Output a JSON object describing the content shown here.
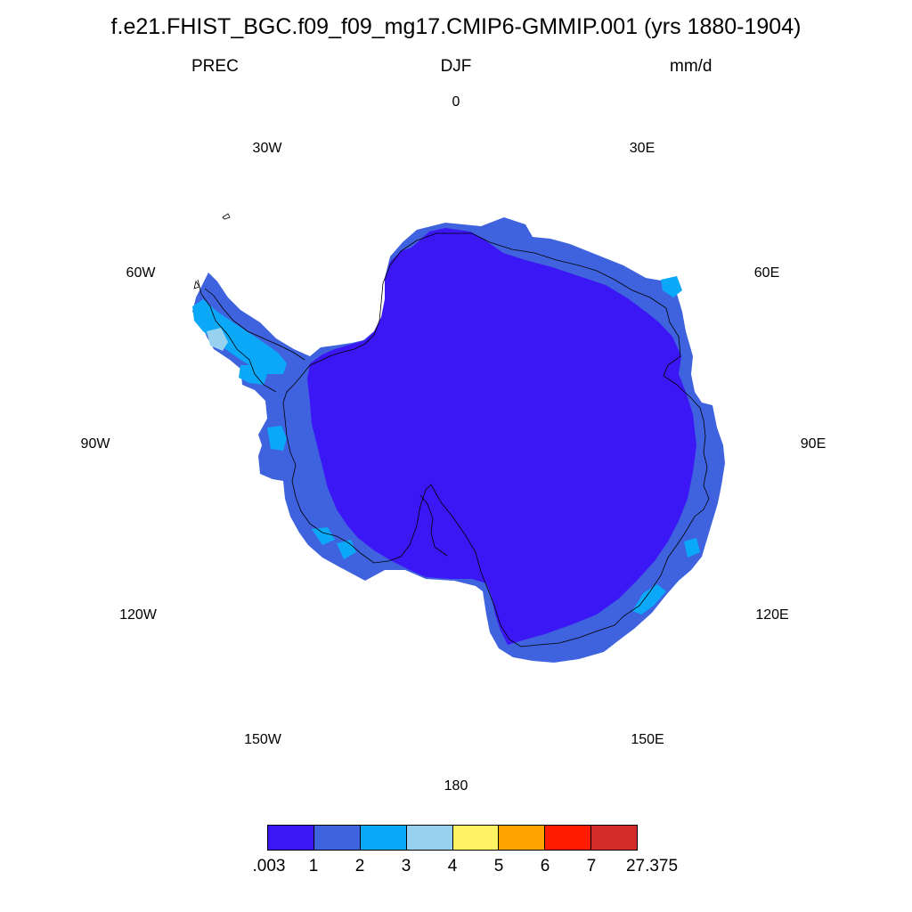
{
  "title": "f.e21.FHIST_BGC.f09_f09_mg17.CMIP6-GMMIP.001 (yrs 1880-1904)",
  "subtitle": {
    "left": "PREC",
    "center": "DJF",
    "right": "mm/d"
  },
  "longitude_labels": {
    "lon_0": "0",
    "lon_30e": "30E",
    "lon_60e": "60E",
    "lon_90e": "90E",
    "lon_120e": "120E",
    "lon_150e": "150E",
    "lon_180": "180",
    "lon_150w": "150W",
    "lon_120w": "120W",
    "lon_90w": "90W",
    "lon_60w": "60W",
    "lon_30w": "30W"
  },
  "colorbar": {
    "colors": [
      "#3c17f5",
      "#3f63de",
      "#0ba8f7",
      "#96d1f0",
      "#fff263",
      "#fea300",
      "#ff1c00",
      "#d42b2b"
    ],
    "labels": [
      ".003",
      "1",
      "2",
      "3",
      "4",
      "5",
      "6",
      "7",
      "27.375"
    ]
  },
  "map": {
    "projection": "south polar stereographic",
    "region": "Antarctica",
    "fill_colors": {
      "interior": "#3c17f5",
      "coast": "#3f63de",
      "coast_high": "#0ba8f7",
      "peninsula_max": "#96d1f0"
    }
  }
}
